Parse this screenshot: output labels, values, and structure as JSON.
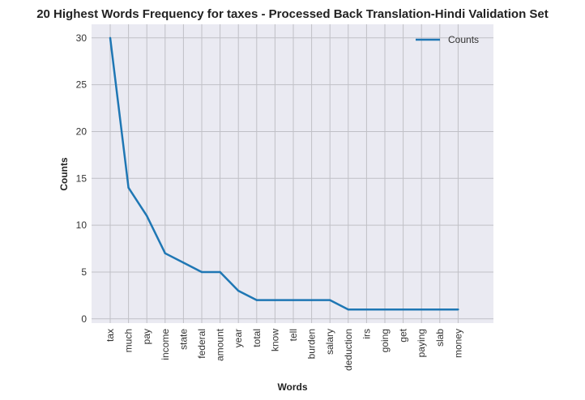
{
  "chart_data": {
    "type": "line",
    "title": "20 Highest Words Frequency for taxes - Processed Back Translation-Hindi Validation Set",
    "xlabel": "Words",
    "ylabel": "Counts",
    "categories": [
      "tax",
      "much",
      "pay",
      "income",
      "state",
      "federal",
      "amount",
      "year",
      "total",
      "know",
      "tell",
      "burden",
      "salary",
      "deduction",
      "irs",
      "going",
      "get",
      "paying",
      "slab",
      "money"
    ],
    "series": [
      {
        "name": "Counts",
        "values": [
          30,
          14,
          11,
          7,
          6,
          5,
          5,
          3,
          2,
          2,
          2,
          2,
          2,
          1,
          1,
          1,
          1,
          1,
          1,
          1
        ]
      }
    ],
    "yticks": [
      0,
      5,
      10,
      15,
      20,
      25,
      30
    ],
    "ylim": [
      -0.45,
      31.45
    ],
    "grid": true,
    "legend_position": "upper-right",
    "colors": {
      "line": "#1f77b4",
      "plot_bg": "#eaeaf2",
      "grid": "#c0c0c6"
    }
  }
}
